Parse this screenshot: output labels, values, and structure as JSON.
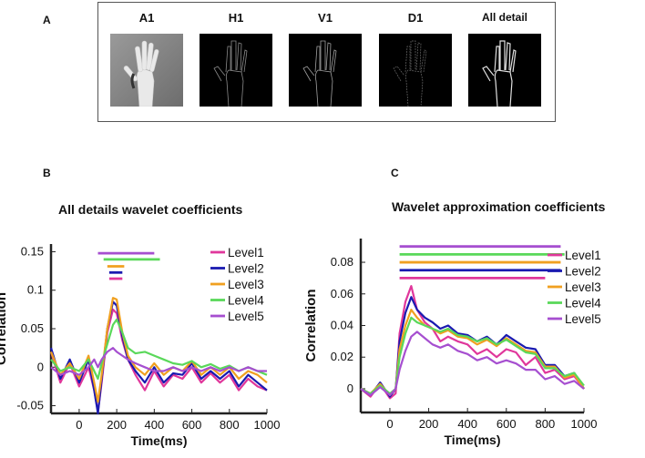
{
  "panelA": {
    "label": "A",
    "tiles": [
      {
        "title": "A1",
        "kind": "approx"
      },
      {
        "title": "H1",
        "kind": "detail"
      },
      {
        "title": "V1",
        "kind": "detail"
      },
      {
        "title": "D1",
        "kind": "detail"
      },
      {
        "title": "All detail",
        "kind": "all"
      }
    ]
  },
  "panelB": {
    "label": "B"
  },
  "panelC": {
    "label": "C"
  },
  "colors": {
    "Level1": "#e0379b",
    "Level2": "#1a1ab0",
    "Level3": "#f0a020",
    "Level4": "#5ad85a",
    "Level5": "#a64fd0"
  },
  "chart_data": [
    {
      "type": "line",
      "title": "All details wavelet coefficients",
      "xlabel": "Time(ms)",
      "ylabel": "Correlation",
      "xlim": [
        -150,
        1000
      ],
      "ylim": [
        -0.06,
        0.16
      ],
      "xticks": [
        0,
        200,
        400,
        600,
        800,
        1000
      ],
      "yticks": [
        -0.05,
        0,
        0.05,
        0.1,
        0.15
      ],
      "ytick_labels": [
        "-0.05",
        "0",
        "0.05",
        "0.1",
        "0.15"
      ],
      "legend_position": "top-right",
      "series": [
        {
          "name": "Level1",
          "x": [
            -150,
            -100,
            -50,
            0,
            50,
            80,
            100,
            120,
            150,
            180,
            200,
            230,
            260,
            300,
            350,
            400,
            450,
            500,
            550,
            600,
            650,
            700,
            750,
            800,
            850,
            900,
            950,
            1000
          ],
          "y": [
            0.02,
            -0.02,
            0.005,
            -0.025,
            0.0,
            -0.03,
            -0.058,
            -0.02,
            0.045,
            0.075,
            0.07,
            0.035,
            0.01,
            -0.01,
            -0.03,
            -0.005,
            -0.025,
            -0.01,
            -0.015,
            0.0,
            -0.02,
            -0.008,
            -0.02,
            -0.01,
            -0.03,
            -0.015,
            -0.025,
            -0.03
          ]
        },
        {
          "name": "Level2",
          "x": [
            -150,
            -100,
            -50,
            0,
            50,
            80,
            100,
            120,
            150,
            180,
            200,
            230,
            260,
            300,
            350,
            400,
            450,
            500,
            550,
            600,
            650,
            700,
            750,
            800,
            850,
            900,
            950,
            1000
          ],
          "y": [
            0.025,
            -0.015,
            0.01,
            -0.02,
            0.01,
            -0.03,
            -0.06,
            -0.015,
            0.05,
            0.085,
            0.08,
            0.04,
            0.01,
            -0.005,
            -0.02,
            0.0,
            -0.02,
            -0.008,
            -0.01,
            0.005,
            -0.015,
            -0.005,
            -0.015,
            -0.005,
            -0.025,
            -0.01,
            -0.02,
            -0.03
          ]
        },
        {
          "name": "Level3",
          "x": [
            -150,
            -100,
            -50,
            0,
            50,
            80,
            100,
            120,
            150,
            180,
            200,
            230,
            260,
            300,
            350,
            400,
            450,
            500,
            550,
            600,
            650,
            700,
            750,
            800,
            850,
            900,
            950,
            1000
          ],
          "y": [
            0.02,
            -0.01,
            0.005,
            -0.015,
            0.015,
            -0.02,
            -0.045,
            -0.01,
            0.05,
            0.09,
            0.088,
            0.045,
            0.015,
            0.0,
            -0.01,
            0.005,
            -0.01,
            0.0,
            -0.005,
            0.008,
            -0.01,
            0.0,
            -0.01,
            0.0,
            -0.015,
            -0.005,
            -0.01,
            -0.02
          ]
        },
        {
          "name": "Level4",
          "x": [
            -150,
            -100,
            -50,
            0,
            50,
            80,
            100,
            120,
            150,
            180,
            200,
            230,
            260,
            300,
            350,
            400,
            450,
            500,
            550,
            600,
            650,
            700,
            750,
            800,
            850,
            900,
            950,
            1000
          ],
          "y": [
            0.01,
            -0.005,
            0.0,
            -0.005,
            0.01,
            -0.005,
            -0.015,
            0.005,
            0.03,
            0.055,
            0.062,
            0.045,
            0.025,
            0.018,
            0.02,
            0.015,
            0.01,
            0.005,
            0.003,
            0.008,
            0.0,
            0.004,
            -0.002,
            0.002,
            -0.005,
            0.0,
            -0.005,
            -0.01
          ]
        },
        {
          "name": "Level5",
          "x": [
            -150,
            -100,
            -50,
            0,
            50,
            80,
            100,
            120,
            150,
            180,
            200,
            230,
            260,
            300,
            350,
            400,
            450,
            500,
            550,
            600,
            650,
            700,
            750,
            800,
            850,
            900,
            950,
            1000
          ],
          "y": [
            0.0,
            -0.01,
            -0.005,
            -0.01,
            0.0,
            0.01,
            0.0,
            0.01,
            0.02,
            0.025,
            0.02,
            0.015,
            0.01,
            0.005,
            0.0,
            -0.005,
            -0.005,
            0.0,
            -0.005,
            0.0,
            -0.005,
            0.0,
            -0.005,
            0.0,
            -0.005,
            0.0,
            -0.005,
            -0.005
          ]
        }
      ],
      "sig_bars": [
        {
          "series": "Level5",
          "start": 100,
          "end": 400,
          "y": 0.148
        },
        {
          "series": "Level4",
          "start": 130,
          "end": 430,
          "y": 0.14
        },
        {
          "series": "Level3",
          "start": 150,
          "end": 240,
          "y": 0.131
        },
        {
          "series": "Level2",
          "start": 160,
          "end": 230,
          "y": 0.123
        },
        {
          "series": "Level1",
          "start": 160,
          "end": 230,
          "y": 0.115
        }
      ]
    },
    {
      "type": "line",
      "title": "Wavelet approximation coefficients",
      "xlabel": "Time(ms)",
      "ylabel": "Correlation",
      "xlim": [
        -150,
        1000
      ],
      "ylim": [
        -0.015,
        0.095
      ],
      "xticks": [
        0,
        200,
        400,
        600,
        800,
        1000
      ],
      "yticks": [
        0,
        0.02,
        0.04,
        0.06,
        0.08
      ],
      "ytick_labels": [
        "0",
        "0.02",
        "0.04",
        "0.06",
        "0.08"
      ],
      "legend_position": "top-right",
      "series": [
        {
          "name": "Level1",
          "x": [
            -150,
            -100,
            -50,
            0,
            30,
            50,
            80,
            110,
            140,
            180,
            220,
            260,
            300,
            350,
            400,
            450,
            500,
            550,
            600,
            650,
            700,
            750,
            800,
            850,
            900,
            950,
            1000
          ],
          "y": [
            0.0,
            -0.005,
            0.003,
            -0.006,
            -0.003,
            0.035,
            0.055,
            0.065,
            0.05,
            0.042,
            0.038,
            0.03,
            0.033,
            0.03,
            0.028,
            0.022,
            0.025,
            0.02,
            0.025,
            0.023,
            0.015,
            0.02,
            0.01,
            0.012,
            0.006,
            0.008,
            0.0
          ]
        },
        {
          "name": "Level2",
          "x": [
            -150,
            -100,
            -50,
            0,
            30,
            50,
            80,
            110,
            140,
            180,
            220,
            260,
            300,
            350,
            400,
            450,
            500,
            550,
            600,
            650,
            700,
            750,
            800,
            850,
            900,
            950,
            1000
          ],
          "y": [
            0.0,
            -0.004,
            0.004,
            -0.005,
            0.0,
            0.03,
            0.048,
            0.058,
            0.05,
            0.045,
            0.042,
            0.038,
            0.04,
            0.035,
            0.034,
            0.03,
            0.033,
            0.028,
            0.034,
            0.03,
            0.026,
            0.025,
            0.015,
            0.015,
            0.008,
            0.01,
            0.0
          ]
        },
        {
          "name": "Level3",
          "x": [
            -150,
            -100,
            -50,
            0,
            30,
            50,
            80,
            110,
            140,
            180,
            220,
            260,
            300,
            350,
            400,
            450,
            500,
            550,
            600,
            650,
            700,
            750,
            800,
            850,
            900,
            950,
            1000
          ],
          "y": [
            0.0,
            -0.003,
            0.003,
            -0.004,
            0.0,
            0.025,
            0.04,
            0.05,
            0.045,
            0.04,
            0.038,
            0.035,
            0.037,
            0.033,
            0.032,
            0.028,
            0.031,
            0.027,
            0.032,
            0.028,
            0.024,
            0.023,
            0.014,
            0.014,
            0.007,
            0.009,
            0.0
          ]
        },
        {
          "name": "Level4",
          "x": [
            -150,
            -100,
            -50,
            0,
            30,
            50,
            80,
            110,
            140,
            180,
            220,
            260,
            300,
            350,
            400,
            450,
            500,
            550,
            600,
            650,
            700,
            750,
            800,
            850,
            900,
            950,
            1000
          ],
          "y": [
            0.0,
            -0.003,
            0.002,
            -0.003,
            0.0,
            0.02,
            0.035,
            0.045,
            0.042,
            0.04,
            0.038,
            0.036,
            0.038,
            0.034,
            0.033,
            0.03,
            0.032,
            0.028,
            0.031,
            0.027,
            0.023,
            0.022,
            0.013,
            0.013,
            0.008,
            0.01,
            0.002
          ]
        },
        {
          "name": "Level5",
          "x": [
            -150,
            -100,
            -50,
            0,
            30,
            50,
            80,
            110,
            140,
            180,
            220,
            260,
            300,
            350,
            400,
            450,
            500,
            550,
            600,
            650,
            700,
            750,
            800,
            850,
            900,
            950,
            1000
          ],
          "y": [
            0.0,
            -0.004,
            0.001,
            -0.004,
            0.0,
            0.012,
            0.024,
            0.033,
            0.036,
            0.032,
            0.028,
            0.026,
            0.028,
            0.024,
            0.022,
            0.018,
            0.02,
            0.016,
            0.018,
            0.016,
            0.012,
            0.012,
            0.006,
            0.008,
            0.003,
            0.005,
            0.0
          ]
        }
      ],
      "sig_bars": [
        {
          "series": "Level5",
          "start": 50,
          "end": 880,
          "y": 0.09
        },
        {
          "series": "Level4",
          "start": 50,
          "end": 900,
          "y": 0.085
        },
        {
          "series": "Level3",
          "start": 50,
          "end": 880,
          "y": 0.08
        },
        {
          "series": "Level2",
          "start": 50,
          "end": 880,
          "y": 0.075
        },
        {
          "series": "Level1",
          "start": 50,
          "end": 800,
          "y": 0.07
        }
      ]
    }
  ]
}
